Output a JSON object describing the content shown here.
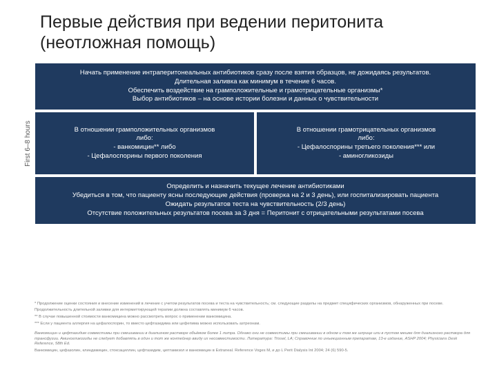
{
  "title": "Первые действия при ведении перитонита (неотложная помощь)",
  "sidebar_label": "First 6–8 hours",
  "colors": {
    "box_bg": "#1f3a5f",
    "box_text": "#ffffff",
    "title_text": "#222222",
    "footnote_text": "#7a7a7a",
    "sidebar_text": "#595959"
  },
  "flow": {
    "top": "Начать применение интраперитонеальных антибиотиков сразу после взятия образцов, не дожидаясь результатов.\nДлительная заливка как минимум в течение 6 часов.\nОбеспечить воздействие на грамположительные и грамотрицательные организмы*\nВыбор антибиотиков – на основе истории болезни и данных о чувствительности",
    "left": "В отношении грамположительных организмов\nлибо:\n- ванкомицин** либо\n- Цефалоспорины первого поколения",
    "right": "В отношении грамотрицательных организмов\nлибо:\n- Цефалоспорины третьего поколения*** или\n- аминогликозиды",
    "bottom": "Определить и назначить текущее лечение антибиотиками\nУбедиться в том, что пациенту ясны последующие действия (проверка на 2 и 3 день), или госпитализировать пациента\nОжидать результатов теста на чувствительность (2/3 день)\nОтсутствие положительных результатов посева за 3 дня = Перитонит с отрицательными результатами посева"
  },
  "footnotes": {
    "f1": "* Продолжение оценки состояния и внесение изменений в лечение с учетом результатов посева и теста на чувствительность; см. следующие разделы на предмет специфических организмов, обнаруженных при посеве.",
    "f2": "Продолжительность длительной заливки для интермиттирующей терапии должна составлять минимум 6 часов.",
    "f3": "** В случае повышенной стоимости ванкомицина можно рассмотреть вопрос о применении ванкомицина.",
    "f4": "*** Если у пациента аллергия на цефалоспорин, то вместо цефтазидима или цефепима можно использовать азтреонам.",
    "disclaimer": "Ванкомицин и цефтазидим совместимы при смешивании в диализном растворе объёмом более 1 литра. Однако они не совместимы при смешивании в одном и том же шприце или в пустом мешке для диализного раствора для трансфузии. Аминогликозиды не следует добавлять в один и тот же контейнер ввиду их несовместимости. Литература: Trissel, LA; Справочник по инъекционным препаратам, 13-е издание, ASHP 2004; Physicians Desk Reference, 58th Ed.",
    "ref": "Ванкомицин, цефазолин, клиндамицин, стоксациллин, цефтазидим, цептамизол и ванкомицин в Extraneal. Reference Voges M, и до L Perit Dialysis Int 2004; 24 (6) 590-5."
  }
}
